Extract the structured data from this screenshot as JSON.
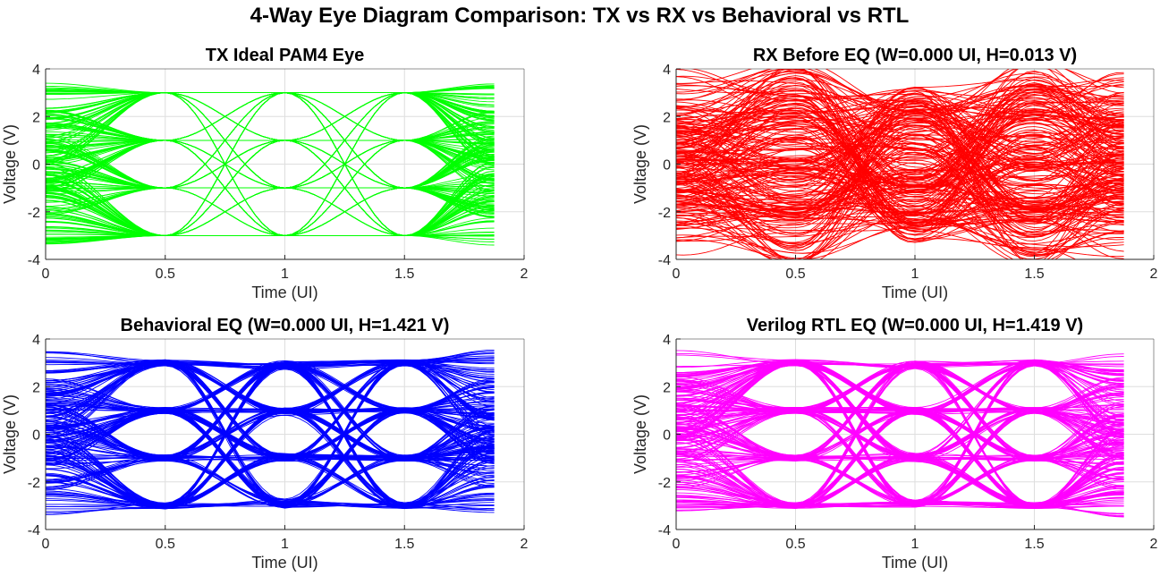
{
  "figure": {
    "title": "4-Way Eye Diagram Comparison: TX vs RX vs Behavioral vs RTL"
  },
  "chart_data": [
    {
      "type": "line",
      "title": "TX Ideal PAM4 Eye",
      "xlabel": "Time (UI)",
      "ylabel": "Voltage (V)",
      "xlim": [
        0,
        2
      ],
      "ylim": [
        -4,
        4
      ],
      "xticks": [
        0,
        0.5,
        1,
        1.5,
        2
      ],
      "xtick_labels": [
        "0",
        "0.5",
        "1",
        "1.5",
        "2"
      ],
      "yticks": [
        -4,
        -2,
        0,
        2,
        4
      ],
      "ytick_labels": [
        "-4",
        "-2",
        "0",
        "2",
        "4"
      ],
      "grid": true,
      "color": "#00ff00",
      "trace_x_range": [
        0,
        1.875
      ],
      "levels": [
        -3,
        -1,
        1,
        3
      ],
      "crossing_times": [
        0.5,
        1.5
      ],
      "spread_at_crossing": 0.0,
      "pinch": 1.0
    },
    {
      "type": "line",
      "title": "RX Before EQ (W=0.000 UI, H=0.013 V)",
      "xlabel": "Time (UI)",
      "ylabel": "Voltage (V)",
      "xlim": [
        0,
        2
      ],
      "ylim": [
        -4,
        4
      ],
      "xticks": [
        0,
        0.5,
        1,
        1.5,
        2
      ],
      "xtick_labels": [
        "0",
        "0.5",
        "1",
        "1.5",
        "2"
      ],
      "yticks": [
        -4,
        -2,
        0,
        2,
        4
      ],
      "ytick_labels": [
        "-4",
        "-2",
        "0",
        "2",
        "4"
      ],
      "grid": true,
      "color": "#ff0000",
      "trace_x_range": [
        0,
        1.875
      ],
      "levels": [
        -3,
        -1,
        1,
        3
      ],
      "crossing_times": [
        0.5,
        1.5
      ],
      "spread_at_crossing": 2.6,
      "pinch": 0.15
    },
    {
      "type": "line",
      "title": "Behavioral EQ (W=0.000 UI, H=1.421 V)",
      "xlabel": "Time (UI)",
      "ylabel": "Voltage (V)",
      "xlim": [
        0,
        2
      ],
      "ylim": [
        -4,
        4
      ],
      "xticks": [
        0,
        0.5,
        1,
        1.5,
        2
      ],
      "xtick_labels": [
        "0",
        "0.5",
        "1",
        "1.5",
        "2"
      ],
      "yticks": [
        -4,
        -2,
        0,
        2,
        4
      ],
      "ytick_labels": [
        "-4",
        "-2",
        "0",
        "2",
        "4"
      ],
      "grid": true,
      "color": "#0000ff",
      "trace_x_range": [
        0,
        1.875
      ],
      "levels": [
        -3,
        -1,
        1,
        3
      ],
      "crossing_times": [
        0.5,
        1.5
      ],
      "spread_at_crossing": 0.25,
      "pinch": 0.85
    },
    {
      "type": "line",
      "title": "Verilog RTL EQ (W=0.000 UI, H=1.419 V)",
      "xlabel": "Time (UI)",
      "ylabel": "Voltage (V)",
      "xlim": [
        0,
        2
      ],
      "ylim": [
        -4,
        4
      ],
      "xticks": [
        0,
        0.5,
        1,
        1.5,
        2
      ],
      "xtick_labels": [
        "0",
        "0.5",
        "1",
        "1.5",
        "2"
      ],
      "yticks": [
        -4,
        -2,
        0,
        2,
        4
      ],
      "ytick_labels": [
        "-4",
        "-2",
        "0",
        "2",
        "4"
      ],
      "grid": true,
      "color": "#ff00ff",
      "trace_x_range": [
        0,
        1.875
      ],
      "levels": [
        -3,
        -1,
        1,
        3
      ],
      "crossing_times": [
        0.5,
        1.5
      ],
      "spread_at_crossing": 0.25,
      "pinch": 0.85
    }
  ]
}
